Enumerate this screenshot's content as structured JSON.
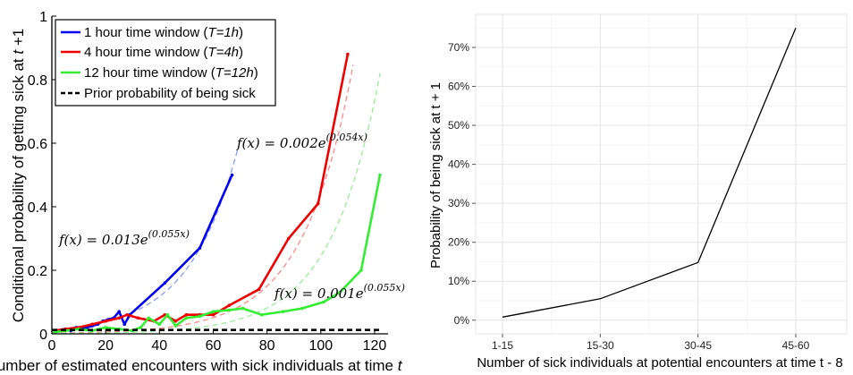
{
  "chart_data": [
    {
      "type": "line",
      "title": "",
      "xlabel_parts": [
        "Number of estimated encounters with sick individuals at time ",
        "t"
      ],
      "ylabel_parts": [
        "Conditional probability of getting sick at ",
        "t",
        " +1"
      ],
      "xlim": [
        0,
        125
      ],
      "ylim": [
        0,
        1
      ],
      "xticks": [
        "0",
        "20",
        "40",
        "60",
        "80",
        "100",
        "120"
      ],
      "yticks": [
        "0",
        "0.2",
        "0.4",
        "0.6",
        "0.8",
        "1"
      ],
      "legend_position": "top-left",
      "series": [
        {
          "name": "1 hour time window (T=1h)",
          "legend_parts": [
            "1 hour time window (",
            "T=1h",
            ")"
          ],
          "color": "#0000ee",
          "style": "solid",
          "x": [
            1,
            3,
            5,
            7,
            9,
            11,
            13,
            15,
            17,
            19,
            21,
            23,
            25,
            27,
            29,
            42,
            55,
            67
          ],
          "y": [
            0.005,
            0.01,
            0.015,
            0.01,
            0.02,
            0.015,
            0.02,
            0.025,
            0.03,
            0.04,
            0.045,
            0.05,
            0.07,
            0.03,
            0.06,
            0.16,
            0.27,
            0.5
          ]
        },
        {
          "name": "4 hour time window (T=4h)",
          "legend_parts": [
            "4 hour time window (",
            "T=4h",
            ")"
          ],
          "color": "#ee0000",
          "style": "solid",
          "x": [
            1,
            5,
            10,
            15,
            20,
            25,
            28,
            32,
            38,
            42,
            46,
            50,
            55,
            60,
            66,
            77,
            88,
            99,
            110
          ],
          "y": [
            0.01,
            0.015,
            0.02,
            0.03,
            0.04,
            0.05,
            0.06,
            0.05,
            0.04,
            0.06,
            0.04,
            0.06,
            0.06,
            0.06,
            0.09,
            0.14,
            0.3,
            0.41,
            0.88
          ]
        },
        {
          "name": "12 hour time window (T=12h)",
          "legend_parts": [
            "12 hour time window (",
            "T=12h",
            ")"
          ],
          "color": "#33ee33",
          "style": "solid",
          "x": [
            1,
            5,
            10,
            15,
            20,
            25,
            30,
            33,
            36,
            40,
            43,
            46,
            50,
            55,
            60,
            66,
            71,
            78,
            86,
            93,
            101,
            107,
            115,
            122
          ],
          "y": [
            0.005,
            0.01,
            0.015,
            0.01,
            0.02,
            0.015,
            0.01,
            0.02,
            0.05,
            0.03,
            0.06,
            0.025,
            0.05,
            0.055,
            0.07,
            0.075,
            0.08,
            0.06,
            0.07,
            0.08,
            0.1,
            0.13,
            0.2,
            0.5
          ]
        },
        {
          "name": "Prior probability of being sick",
          "color": "#000000",
          "style": "dashed",
          "x": [
            0,
            122
          ],
          "y": [
            0.012,
            0.012
          ]
        }
      ],
      "fits": [
        {
          "color": "#8899ff",
          "a": 0.013,
          "b": 0.055,
          "x_range": [
            0,
            69
          ]
        },
        {
          "color": "#ff8888",
          "a": 0.002,
          "b": 0.054,
          "x_range": [
            0,
            112
          ]
        },
        {
          "color": "#99ee99",
          "a": 0.001,
          "b": 0.055,
          "x_range": [
            0,
            122
          ]
        }
      ],
      "annotations": [
        {
          "text_lhs": "f(x) = 0.013e",
          "text_exp": "(0.055x)"
        },
        {
          "text_lhs": "f(x) = 0.002e",
          "text_exp": "(0.054x)"
        },
        {
          "text_lhs": "f(x) = 0.001e",
          "text_exp": "(0.055x)"
        }
      ]
    },
    {
      "type": "line",
      "title": "",
      "xlabel": "Number of sick individuals at potential encounters at time t - 8",
      "ylabel": "Probability of being sick at t + 1",
      "categories": [
        "1-15",
        "15-30",
        "30-45",
        "45-60"
      ],
      "yticks": [
        "0%",
        "10%",
        "20%",
        "30%",
        "40%",
        "50%",
        "60%",
        "70%"
      ],
      "ylim": [
        -0.035,
        0.785
      ],
      "grid": true,
      "series": [
        {
          "color": "#000000",
          "values": [
            0.008,
            0.055,
            0.148,
            0.75
          ]
        }
      ]
    }
  ]
}
